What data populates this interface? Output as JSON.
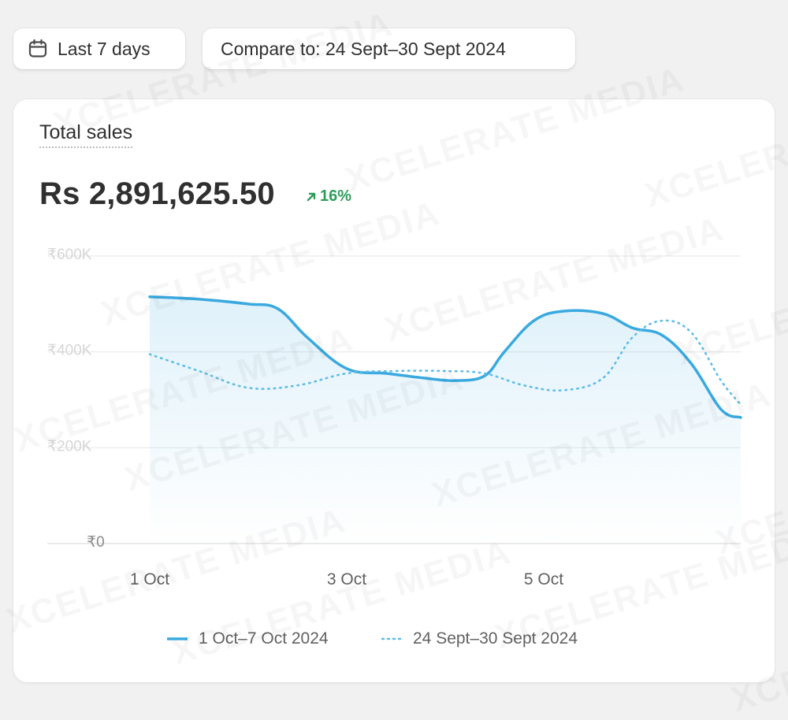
{
  "filters": {
    "date_range_label": "Last 7 days",
    "compare_label": "Compare to: 24 Sept–30 Sept 2024"
  },
  "card": {
    "title": "Total sales",
    "metric_value": "Rs 2,891,625.50",
    "delta": "16%",
    "delta_icon": "arrow-up-right-icon"
  },
  "watermark": "XCELERATE MEDIA",
  "colors": {
    "current_series": "#3aa9e0",
    "compare_series": "#5fbde8",
    "delta_positive": "#2e9d5b",
    "grid": "#ebebeb"
  },
  "chart_data": {
    "type": "line",
    "title": "Total sales",
    "ylim": [
      0,
      600000
    ],
    "y_ticks": [
      0,
      200000,
      400000,
      600000
    ],
    "y_tick_labels": [
      "₹0",
      "₹200K",
      "₹400K",
      "₹600K"
    ],
    "x_ticks": [
      0,
      2,
      4
    ],
    "x_tick_labels": [
      "1 Oct",
      "3 Oct",
      "5 Oct"
    ],
    "grid": true,
    "legend_position": "bottom",
    "series": [
      {
        "name": "1 Oct–7 Oct 2024",
        "style": "solid",
        "x": [
          0,
          0.5,
          1,
          1.3,
          1.6,
          2,
          2.4,
          2.8,
          3.1,
          3.4,
          3.6,
          3.9,
          4.2,
          4.6,
          4.9,
          5.2,
          5.5,
          5.8,
          6
        ],
        "values": [
          515000,
          510000,
          500000,
          490000,
          430000,
          365000,
          355000,
          345000,
          340000,
          350000,
          400000,
          465000,
          485000,
          480000,
          450000,
          435000,
          375000,
          280000,
          263000
        ]
      },
      {
        "name": "24 Sept–30 Sept 2024",
        "style": "dotted",
        "x": [
          0,
          0.5,
          1,
          1.5,
          2,
          2.5,
          3,
          3.4,
          3.8,
          4.2,
          4.6,
          4.9,
          5.2,
          5.5,
          5.8,
          6
        ],
        "values": [
          395000,
          360000,
          325000,
          330000,
          355000,
          360000,
          360000,
          355000,
          330000,
          320000,
          345000,
          430000,
          465000,
          440000,
          340000,
          290000
        ]
      }
    ]
  }
}
